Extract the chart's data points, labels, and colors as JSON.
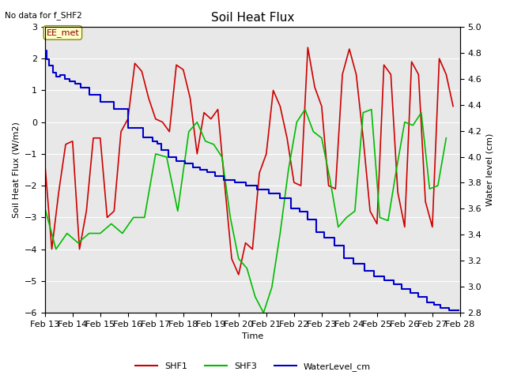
{
  "title": "Soil Heat Flux",
  "no_data_text": "No data for f_SHF2",
  "annotation_text": "EE_met",
  "xlabel": "Time",
  "ylabel_left": "Soil Heat Flux (W/m2)",
  "ylabel_right": "Water level (cm)",
  "ylim_left": [
    -6.0,
    3.0
  ],
  "ylim_right": [
    2.8,
    5.0
  ],
  "background_color": "#ffffff",
  "plot_bg_color": "#e8e8e8",
  "grid_color": "#ffffff",
  "shf1_color": "#cc0000",
  "shf3_color": "#00bb00",
  "water_color": "#0000cc",
  "x_dates": [
    13,
    14,
    15,
    16,
    17,
    18,
    19,
    20,
    21,
    22,
    23,
    24,
    25,
    26,
    27,
    28
  ],
  "shf1_x": [
    13.0,
    13.25,
    13.5,
    13.75,
    14.0,
    14.25,
    14.5,
    14.75,
    15.0,
    15.25,
    15.5,
    15.75,
    16.0,
    16.25,
    16.5,
    16.75,
    17.0,
    17.25,
    17.5,
    17.75,
    18.0,
    18.25,
    18.5,
    18.75,
    19.0,
    19.25,
    19.5,
    19.75,
    20.0,
    20.25,
    20.5,
    20.75,
    21.0,
    21.25,
    21.5,
    21.75,
    22.0,
    22.25,
    22.5,
    22.75,
    23.0,
    23.25,
    23.5,
    23.75,
    24.0,
    24.25,
    24.5,
    24.75,
    25.0,
    25.25,
    25.5,
    25.75,
    26.0,
    26.25,
    26.5,
    26.75,
    27.0,
    27.25,
    27.5,
    27.75
  ],
  "shf1_y": [
    -1.3,
    -4.0,
    -2.2,
    -0.7,
    -0.6,
    -4.0,
    -2.8,
    -0.5,
    -0.5,
    -3.0,
    -2.8,
    -0.3,
    0.1,
    1.85,
    1.6,
    0.75,
    0.1,
    0.0,
    -0.3,
    1.8,
    1.65,
    0.75,
    -1.0,
    0.3,
    0.1,
    0.4,
    -2.0,
    -4.3,
    -4.8,
    -3.8,
    -4.0,
    -1.6,
    -1.0,
    1.0,
    0.5,
    -0.5,
    -1.9,
    -2.0,
    2.35,
    1.1,
    0.5,
    -2.0,
    -2.1,
    1.5,
    2.3,
    1.5,
    -0.5,
    -2.8,
    -3.2,
    1.8,
    1.5,
    -2.2,
    -3.3,
    1.9,
    1.5,
    -2.5,
    -3.3,
    2.0,
    1.5,
    0.5
  ],
  "shf3_x": [
    13.0,
    13.4,
    13.8,
    14.2,
    14.6,
    15.0,
    15.4,
    15.8,
    16.2,
    16.6,
    17.0,
    17.4,
    17.8,
    18.2,
    18.5,
    18.8,
    19.1,
    19.4,
    19.7,
    20.0,
    20.3,
    20.6,
    20.9,
    21.2,
    21.5,
    21.8,
    22.1,
    22.4,
    22.7,
    23.0,
    23.3,
    23.6,
    23.9,
    24.2,
    24.5,
    24.8,
    25.1,
    25.4,
    25.7,
    26.0,
    26.3,
    26.6,
    26.9,
    27.2,
    27.5
  ],
  "shf3_y": [
    -2.7,
    -4.0,
    -3.5,
    -3.8,
    -3.5,
    -3.5,
    -3.2,
    -3.5,
    -3.0,
    -3.0,
    -1.0,
    -1.1,
    -2.8,
    -0.3,
    0.0,
    -0.6,
    -0.7,
    -1.1,
    -3.0,
    -4.3,
    -4.6,
    -5.5,
    -6.0,
    -5.2,
    -3.5,
    -1.5,
    0.0,
    0.4,
    -0.3,
    -0.5,
    -1.8,
    -3.3,
    -3.0,
    -2.8,
    0.3,
    0.4,
    -3.0,
    -3.1,
    -1.5,
    0.0,
    -0.1,
    0.3,
    -2.1,
    -2.0,
    -0.5
  ],
  "water_x": [
    13.0,
    13.05,
    13.05,
    13.15,
    13.15,
    13.28,
    13.28,
    13.42,
    13.42,
    13.55,
    13.55,
    13.72,
    13.72,
    13.9,
    13.9,
    14.08,
    14.08,
    14.3,
    14.3,
    14.6,
    14.6,
    15.0,
    15.0,
    15.5,
    15.5,
    16.0,
    16.0,
    16.55,
    16.55,
    16.9,
    16.9,
    17.05,
    17.05,
    17.2,
    17.2,
    17.45,
    17.45,
    17.75,
    17.75,
    18.05,
    18.05,
    18.35,
    18.35,
    18.6,
    18.6,
    18.85,
    18.85,
    19.15,
    19.15,
    19.45,
    19.45,
    19.85,
    19.85,
    20.25,
    20.25,
    20.65,
    20.65,
    21.1,
    21.1,
    21.5,
    21.5,
    21.9,
    21.9,
    22.2,
    22.2,
    22.5,
    22.5,
    22.8,
    22.8,
    23.1,
    23.1,
    23.45,
    23.45,
    23.8,
    23.8,
    24.15,
    24.15,
    24.55,
    24.55,
    24.9,
    24.9,
    25.25,
    25.25,
    25.6,
    25.6,
    25.9,
    25.9,
    26.2,
    26.2,
    26.5,
    26.5,
    26.8,
    26.8,
    27.05,
    27.05,
    27.3,
    27.3,
    27.6,
    27.6,
    27.95
  ],
  "water_y": [
    4.82,
    4.82,
    4.75,
    4.75,
    4.7,
    4.7,
    4.65,
    4.65,
    4.62,
    4.62,
    4.63,
    4.63,
    4.6,
    4.6,
    4.58,
    4.58,
    4.56,
    4.56,
    4.53,
    4.53,
    4.48,
    4.48,
    4.42,
    4.42,
    4.37,
    4.37,
    4.22,
    4.22,
    4.15,
    4.15,
    4.12,
    4.12,
    4.1,
    4.1,
    4.05,
    4.05,
    4.0,
    4.0,
    3.97,
    3.97,
    3.95,
    3.95,
    3.92,
    3.92,
    3.9,
    3.9,
    3.88,
    3.88,
    3.85,
    3.85,
    3.82,
    3.82,
    3.8,
    3.8,
    3.78,
    3.78,
    3.75,
    3.75,
    3.72,
    3.72,
    3.68,
    3.68,
    3.6,
    3.6,
    3.58,
    3.58,
    3.52,
    3.52,
    3.42,
    3.42,
    3.38,
    3.38,
    3.32,
    3.32,
    3.22,
    3.22,
    3.18,
    3.18,
    3.12,
    3.12,
    3.08,
    3.08,
    3.05,
    3.05,
    3.02,
    3.02,
    2.98,
    2.98,
    2.95,
    2.95,
    2.92,
    2.92,
    2.88,
    2.88,
    2.86,
    2.86,
    2.84,
    2.84,
    2.82,
    2.82
  ]
}
